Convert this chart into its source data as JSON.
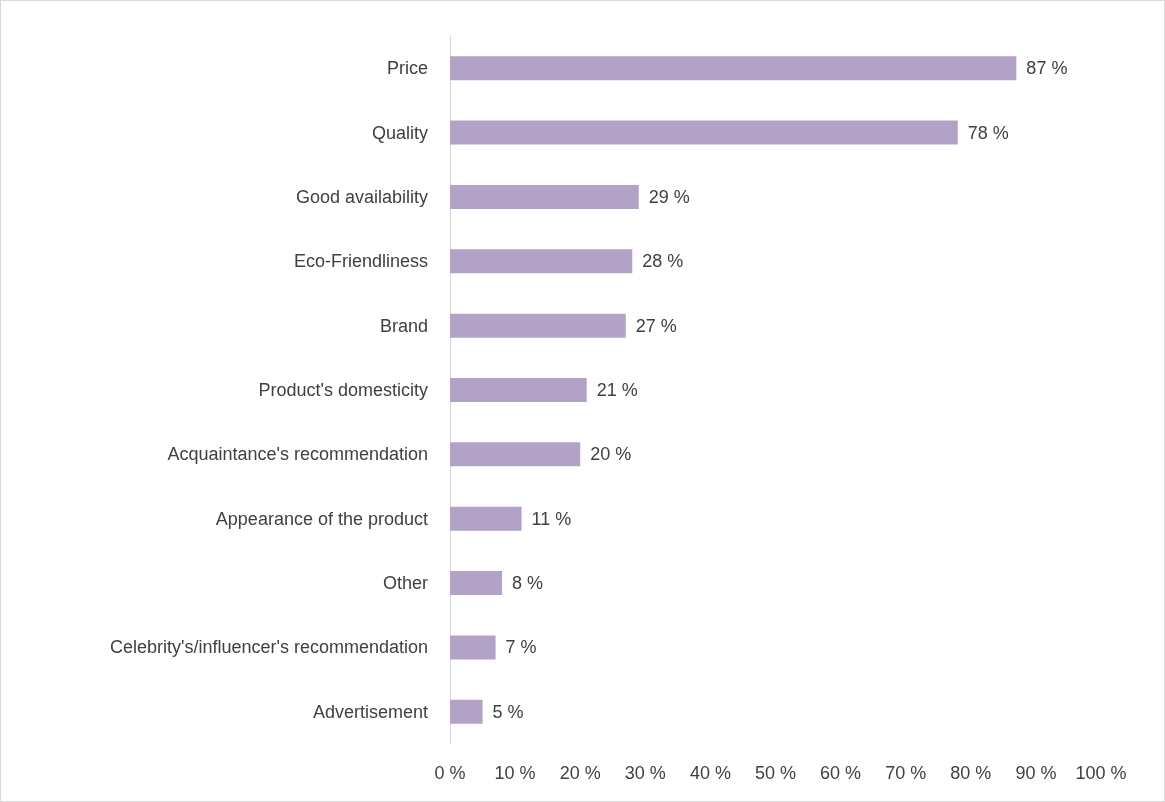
{
  "chart_data": {
    "type": "bar",
    "orientation": "horizontal",
    "categories": [
      "Price",
      "Quality",
      "Good availability",
      "Eco-Friendliness",
      "Brand",
      "Product's domesticity",
      "Acquaintance's recommendation",
      "Appearance of the product",
      "Other",
      "Celebrity's/influencer's recommendation",
      "Advertisement"
    ],
    "values": [
      87,
      78,
      29,
      28,
      27,
      21,
      20,
      11,
      8,
      7,
      5
    ],
    "value_labels": [
      "87 %",
      "78 %",
      "29 %",
      "28 %",
      "27 %",
      "21 %",
      "20 %",
      "11 %",
      "8 %",
      "7 %",
      "5 %"
    ],
    "color": "#b3a2c7",
    "xlim": [
      0,
      100
    ],
    "xticks": [
      {
        "value": 0,
        "label": "0 %"
      },
      {
        "value": 10,
        "label": "10 %"
      },
      {
        "value": 20,
        "label": "20 %"
      },
      {
        "value": 30,
        "label": "30 %"
      },
      {
        "value": 40,
        "label": "40 %"
      },
      {
        "value": 50,
        "label": "50 %"
      },
      {
        "value": 60,
        "label": "60 %"
      },
      {
        "value": 70,
        "label": "70 %"
      },
      {
        "value": 80,
        "label": "80 %"
      },
      {
        "value": 90,
        "label": "90 %"
      },
      {
        "value": 100,
        "label": "100 %"
      }
    ],
    "grid": false
  }
}
